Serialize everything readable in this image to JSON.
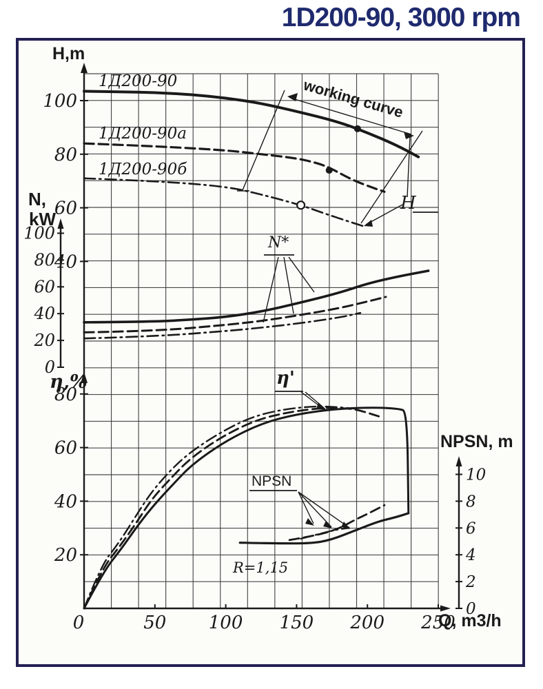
{
  "title": "1D200-90, 3000 rpm",
  "colors": {
    "ink": "#1a1a1a",
    "accent": "#1f2a6e",
    "frame_border": "#232052"
  },
  "labels": {
    "head_axis": "H,m",
    "power_axis_1": "N,",
    "power_axis_2": "kW",
    "efficiency_axis": "η,%",
    "npsh_axis": "NPSN, m",
    "flow_axis": "Q, m3/h",
    "working_curve": "working curve",
    "head_callout": "H",
    "power_callout": "N*",
    "efficiency_callout": "η'",
    "npsh_callout": "NPSN",
    "ratio_note": "R=1,15"
  },
  "curve_labels": [
    "1Д200-90",
    "1Д200-90а",
    "1Д200-90б"
  ],
  "chart_data": {
    "type": "line",
    "title": "1D200-90, 3000 rpm",
    "xlabel": "Q, m3/h",
    "xlim": [
      0,
      258
    ],
    "grid": true,
    "x_ticks": [
      0,
      50,
      100,
      150,
      200,
      250
    ],
    "panels": [
      {
        "id": "head",
        "ylabel": "H,m",
        "ticks": [
          100,
          80,
          60,
          40
        ],
        "series": [
          {
            "name": "1Д200-90",
            "style": "solid",
            "points": [
              [
                0,
                103.5
              ],
              [
                25,
                103.3
              ],
              [
                50,
                103
              ],
              [
                75,
                102.3
              ],
              [
                100,
                101
              ],
              [
                125,
                99
              ],
              [
                150,
                96
              ],
              [
                180,
                92
              ],
              [
                200,
                88
              ],
              [
                220,
                83.5
              ],
              [
                236,
                79
              ]
            ]
          },
          {
            "name": "1Д200-90а",
            "style": "dashed",
            "points": [
              [
                0,
                84
              ],
              [
                50,
                83
              ],
              [
                100,
                81.5
              ],
              [
                125,
                80
              ],
              [
                150,
                78.5
              ],
              [
                166,
                76.5
              ],
              [
                175,
                74.5
              ],
              [
                189,
                70.5
              ],
              [
                201,
                68
              ],
              [
                212,
                66
              ]
            ]
          },
          {
            "name": "1Д200-90б",
            "style": "dashdot",
            "points": [
              [
                0,
                71
              ],
              [
                50,
                70
              ],
              [
                100,
                68
              ],
              [
                125,
                65
              ],
              [
                153,
                61
              ],
              [
                169,
                58
              ],
              [
                189,
                54.5
              ],
              [
                198,
                53
              ]
            ]
          }
        ]
      },
      {
        "id": "power",
        "ylabel": "N, kW",
        "ticks": [
          100,
          80,
          60,
          40,
          20,
          0
        ],
        "series": [
          {
            "name": "1Д200-90",
            "style": "solid",
            "points": [
              [
                0,
                33.5
              ],
              [
                50,
                34
              ],
              [
                75,
                35.5
              ],
              [
                100,
                37.5
              ],
              [
                125,
                41.5
              ],
              [
                150,
                47.5
              ],
              [
                180,
                55.5
              ],
              [
                200,
                62.5
              ],
              [
                223,
                68
              ],
              [
                243,
                72
              ]
            ]
          },
          {
            "name": "1Д200-90а",
            "style": "dashed",
            "points": [
              [
                0,
                26
              ],
              [
                50,
                27
              ],
              [
                100,
                31.5
              ],
              [
                125,
                34.5
              ],
              [
                150,
                38.5
              ],
              [
                180,
                44
              ],
              [
                200,
                49
              ],
              [
                213,
                52.5
              ]
            ]
          },
          {
            "name": "1Д200-90б",
            "style": "dashdot",
            "points": [
              [
                0,
                21.5
              ],
              [
                50,
                23
              ],
              [
                100,
                27
              ],
              [
                125,
                29.5
              ],
              [
                150,
                32.5
              ],
              [
                180,
                37
              ],
              [
                195,
                40.5
              ]
            ]
          }
        ]
      },
      {
        "id": "efficiency",
        "ylabel": "η,%",
        "ticks": [
          80,
          60,
          40,
          20
        ],
        "series": [
          {
            "name": "1Д200-90",
            "style": "solid",
            "points": [
              [
                0,
                0
              ],
              [
                14,
                14
              ],
              [
                26,
                22
              ],
              [
                38,
                31
              ],
              [
                50,
                39
              ],
              [
                64,
                47
              ],
              [
                77,
                54
              ],
              [
                100,
                62.5
              ],
              [
                125,
                69
              ],
              [
                150,
                72.5
              ],
              [
                179,
                74.5
              ],
              [
                205,
                75
              ],
              [
                222,
                74.5
              ],
              [
                228,
                73.5
              ],
              [
                229,
                35.5
              ]
            ]
          },
          {
            "name": "1Д200-90а",
            "style": "dashed",
            "points": [
              [
                0,
                0
              ],
              [
                13,
                15
              ],
              [
                25,
                23
              ],
              [
                37,
                32
              ],
              [
                48,
                41
              ],
              [
                62,
                49
              ],
              [
                75,
                56
              ],
              [
                97,
                64
              ],
              [
                122,
                70.5
              ],
              [
                147,
                73.5
              ],
              [
                172,
                75
              ],
              [
                190,
                74.5
              ],
              [
                200,
                73
              ],
              [
                209,
                71.5
              ]
            ]
          },
          {
            "name": "1Д200-90б",
            "style": "dashdot",
            "points": [
              [
                0,
                0
              ],
              [
                12,
                16
              ],
              [
                24,
                24
              ],
              [
                36,
                34
              ],
              [
                47,
                43
              ],
              [
                60,
                51
              ],
              [
                73,
                57.5
              ],
              [
                94,
                65
              ],
              [
                118,
                71.5
              ],
              [
                143,
                74.5
              ],
              [
                165,
                75.5
              ],
              [
                182,
                75
              ],
              [
                191,
                74.5
              ]
            ]
          }
        ]
      },
      {
        "id": "npsh",
        "ylabel": "NPSN, m",
        "ticks": [
          10,
          8,
          6,
          4,
          2,
          0
        ],
        "series": [
          {
            "name": "1Д200-90",
            "style": "solid",
            "points": [
              [
                110,
                4.9
              ],
              [
                135,
                4.85
              ],
              [
                160,
                4.85
              ],
              [
                174,
                5.1
              ],
              [
                191,
                5.8
              ],
              [
                208,
                6.5
              ],
              [
                220,
                6.8
              ],
              [
                229,
                7.1
              ]
            ]
          },
          {
            "name": "1Д200-90а",
            "style": "dashed",
            "points": [
              [
                145,
                5.1
              ],
              [
                162,
                5.4
              ],
              [
                179,
                5.9
              ],
              [
                191,
                6.6
              ],
              [
                201,
                7.1
              ],
              [
                212,
                7.7
              ]
            ]
          },
          {
            "name": "1Д200-90б",
            "style": "dashdot",
            "points": [
              [
                153,
                5.2
              ],
              [
                164,
                5.5
              ],
              [
                179,
                5.9
              ],
              [
                187,
                6.0
              ]
            ]
          }
        ]
      }
    ],
    "markers": [
      {
        "shape": "filled-dot",
        "panel": "head",
        "point": [
          193,
          89.5
        ]
      },
      {
        "shape": "filled-dot",
        "panel": "head",
        "point": [
          173,
          74
        ]
      },
      {
        "shape": "open-circle",
        "panel": "head",
        "point": [
          153,
          61
        ]
      }
    ]
  }
}
